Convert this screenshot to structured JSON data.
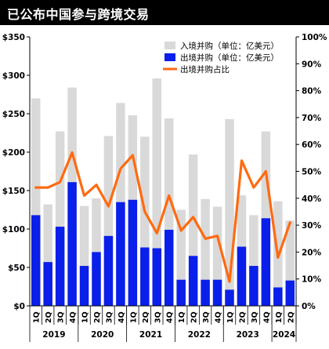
{
  "header": {
    "title": "已公布中国参与跨境交易"
  },
  "colors": {
    "inbound": "#D9D9D9",
    "outbound": "#0A1FEA",
    "share": "#FF6A10",
    "axis": "#000000"
  },
  "chart_data": {
    "type": "bar",
    "title": "已公布中国参与跨境交易",
    "categories": [
      "1Q",
      "2Q",
      "3Q",
      "4Q",
      "1Q",
      "2Q",
      "3Q",
      "4Q",
      "1Q",
      "2Q",
      "3Q",
      "4Q",
      "1Q",
      "2Q",
      "3Q",
      "4Q",
      "1Q",
      "2Q",
      "3Q",
      "4Q",
      "1Q",
      "2Q"
    ],
    "year_groups": [
      {
        "label": "2019",
        "count": 4
      },
      {
        "label": "2020",
        "count": 4
      },
      {
        "label": "2021",
        "count": 4
      },
      {
        "label": "2022",
        "count": 4
      },
      {
        "label": "2023",
        "count": 4
      },
      {
        "label": "2024",
        "count": 2
      }
    ],
    "series": [
      {
        "name": "入境并购（单位：亿美元）",
        "type": "bar",
        "axis": "left",
        "values": [
          270,
          132,
          227,
          284,
          130,
          140,
          221,
          264,
          248,
          220,
          296,
          244,
          125,
          197,
          139,
          129,
          243,
          144,
          118,
          227,
          136,
          111
        ]
      },
      {
        "name": "出境并购（单位：亿美元）",
        "type": "bar",
        "axis": "left",
        "values": [
          118,
          57,
          103,
          161,
          52,
          70,
          91,
          135,
          138,
          76,
          75,
          99,
          34,
          65,
          34,
          34,
          21,
          77,
          52,
          114,
          24,
          33
        ]
      },
      {
        "name": "出境并购占比",
        "type": "line",
        "axis": "right",
        "values": [
          44,
          44,
          46,
          57,
          41,
          45,
          37,
          51,
          56,
          35,
          27,
          41,
          28,
          33,
          25,
          26,
          9,
          54,
          44,
          50,
          18,
          31
        ]
      }
    ],
    "left_axis": {
      "min": 0,
      "max": 350,
      "step": 50,
      "ticks": [
        "$0",
        "$50",
        "$100",
        "$150",
        "$200",
        "$250",
        "$300",
        "$350"
      ]
    },
    "right_axis": {
      "min": 0,
      "max": 100,
      "step": 10,
      "ticks": [
        "0%",
        "10%",
        "20%",
        "30%",
        "40%",
        "50%",
        "60%",
        "70%",
        "80%",
        "90%",
        "100%"
      ]
    },
    "grid": false,
    "legend_position": "top-right"
  }
}
